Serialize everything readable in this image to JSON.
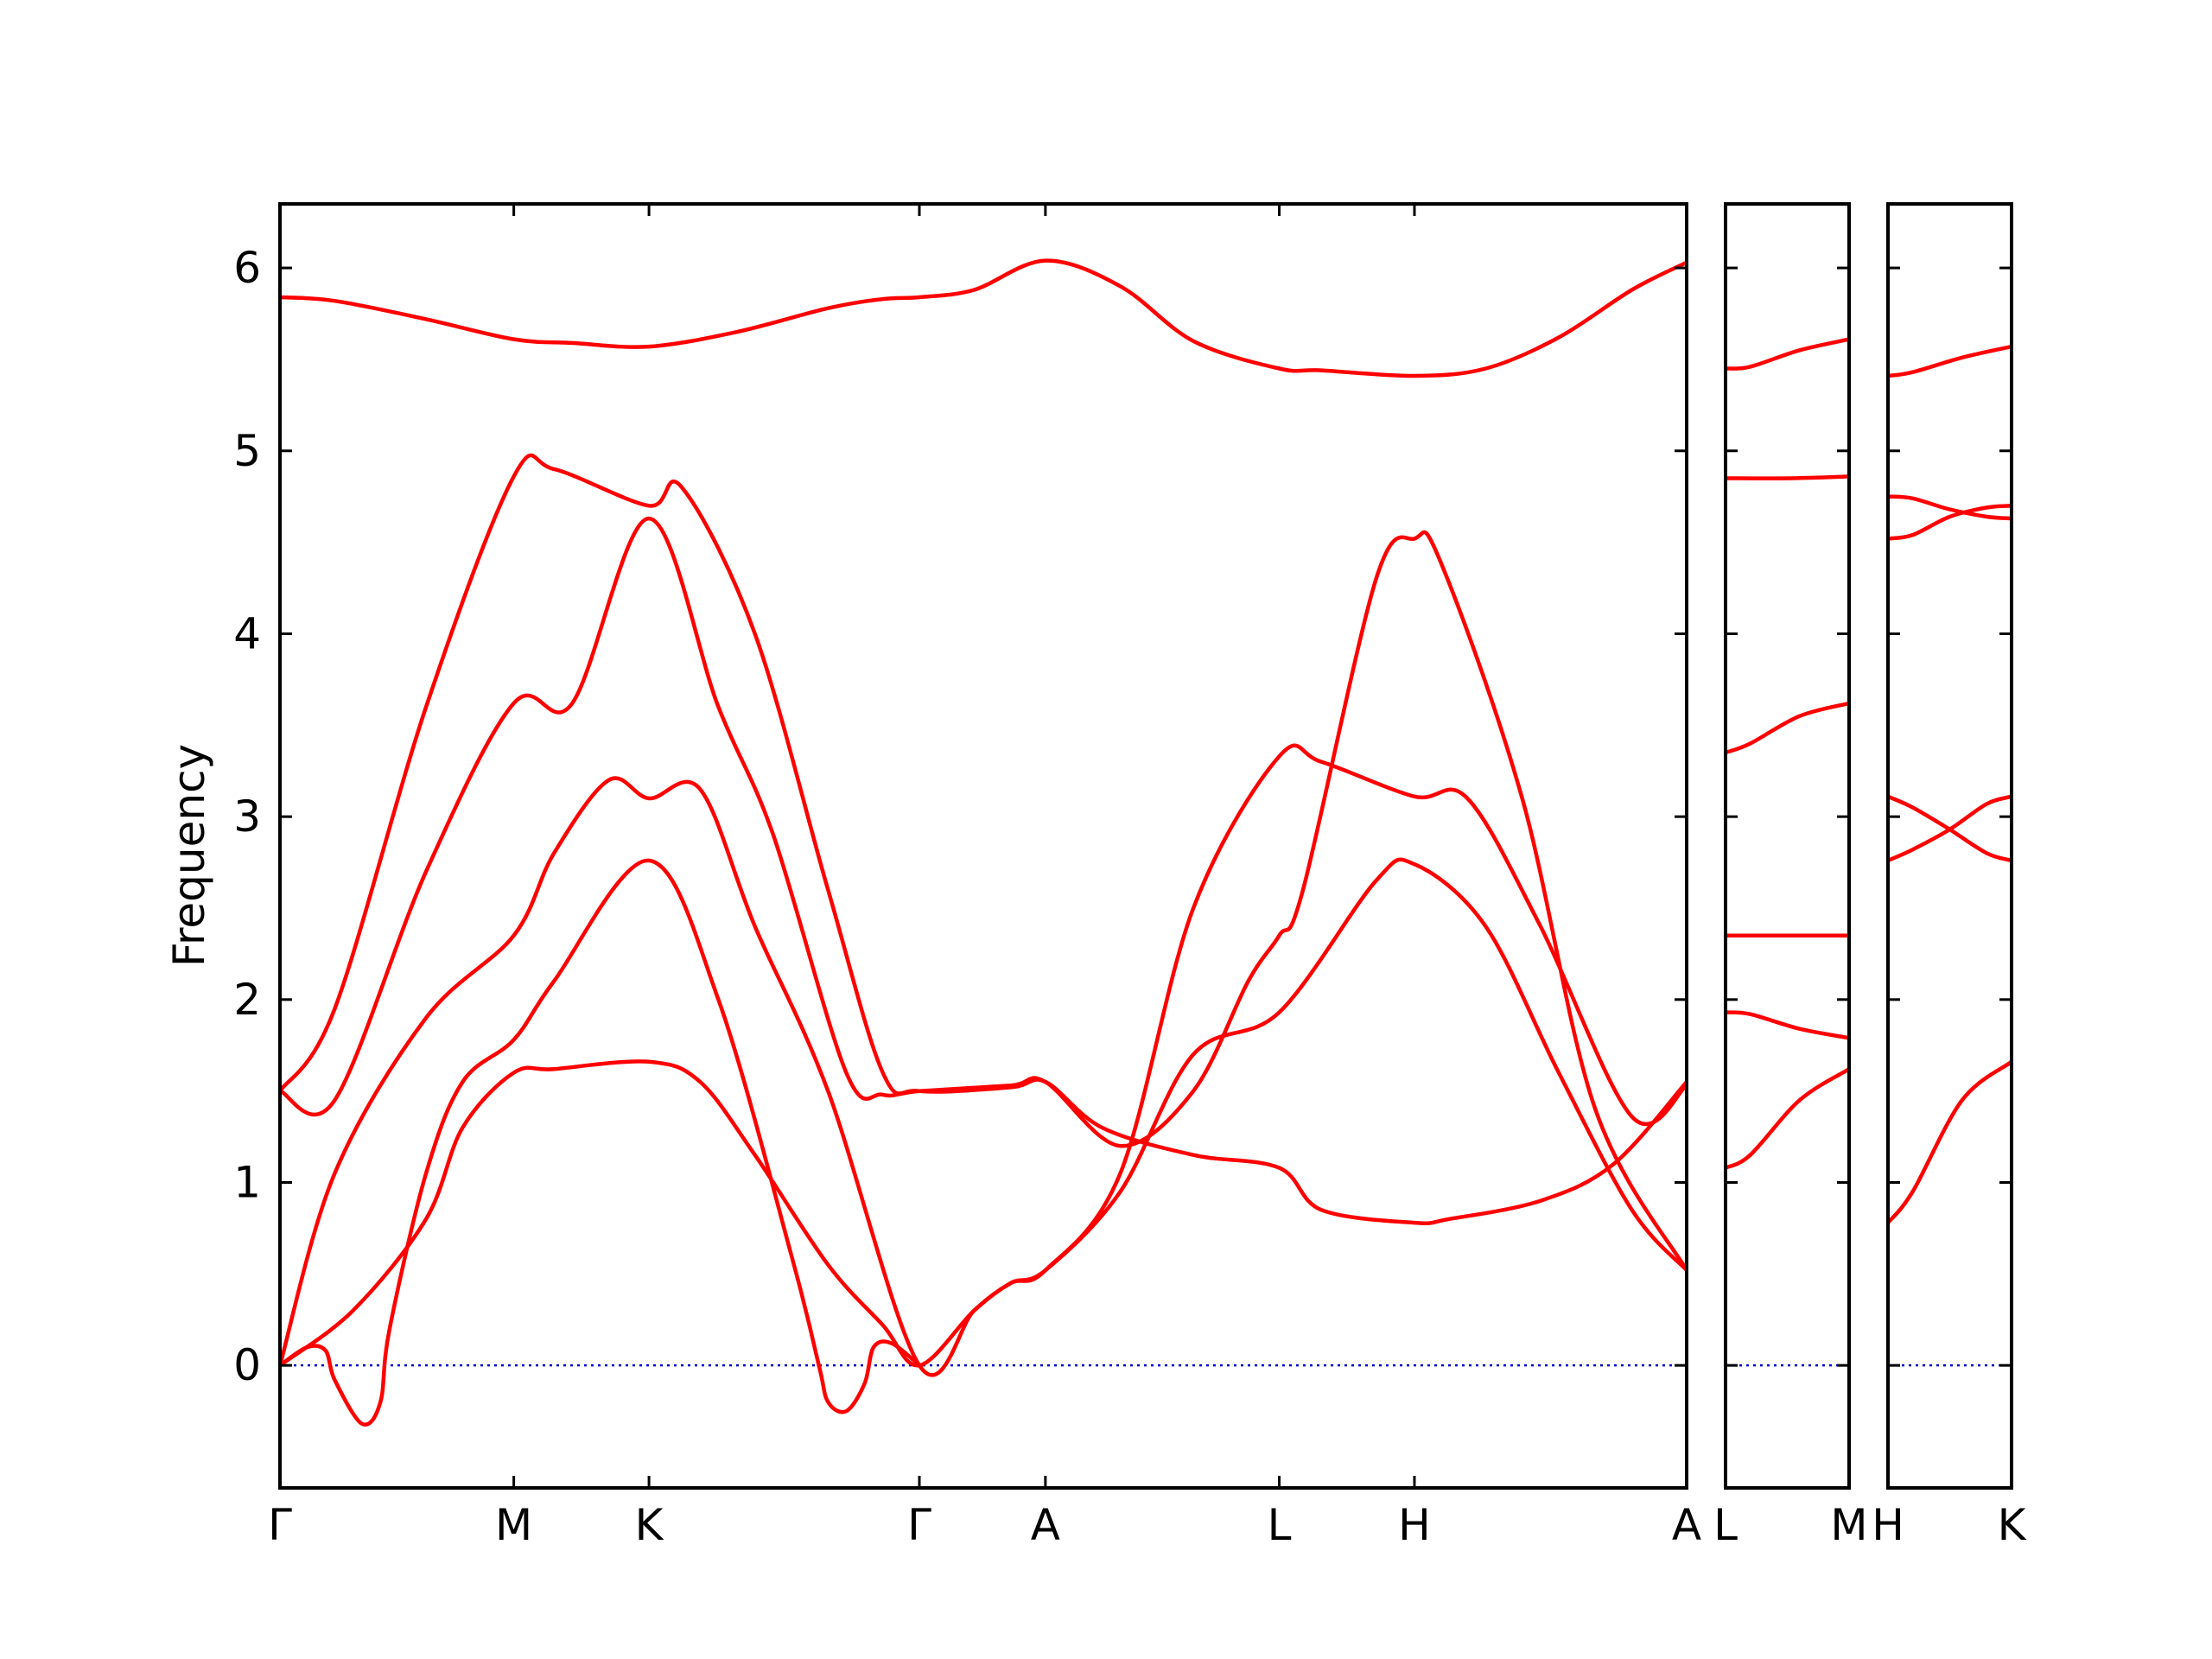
{
  "chart_data": {
    "type": "line",
    "ylabel": "Frequency",
    "ylim": [
      -0.67,
      6.35
    ],
    "yticks": [
      0,
      1,
      2,
      3,
      4,
      5,
      6
    ],
    "band_color": "#ff0000",
    "zero_line_color": "#0000cd",
    "grid": false,
    "panels": [
      {
        "xrange": [
          0,
          7.7
        ],
        "ticks": [
          {
            "x": 0.0,
            "label": "Γ"
          },
          {
            "x": 1.28,
            "label": "M"
          },
          {
            "x": 2.02,
            "label": "K"
          },
          {
            "x": 3.5,
            "label": "Γ"
          },
          {
            "x": 4.19,
            "label": "A"
          },
          {
            "x": 5.47,
            "label": "L"
          },
          {
            "x": 6.21,
            "label": "H"
          },
          {
            "x": 7.7,
            "label": "A"
          }
        ],
        "series": [
          {
            "x": [
              0,
              0.3,
              0.8,
              1.28,
              1.6,
              2.02,
              2.5,
              3.0,
              3.3,
              3.5,
              3.8,
              4.19,
              4.6,
              5.0,
              5.47,
              5.7,
              6.21,
              6.6,
              7.0,
              7.4,
              7.7
            ],
            "y": [
              5.84,
              5.82,
              5.72,
              5.61,
              5.59,
              5.57,
              5.65,
              5.78,
              5.83,
              5.84,
              5.88,
              6.04,
              5.9,
              5.6,
              5.45,
              5.44,
              5.41,
              5.45,
              5.62,
              5.88,
              6.03
            ]
          },
          {
            "x": [
              0,
              0.3,
              0.8,
              1.28,
              1.5,
              2.02,
              2.2,
              2.6,
              3.0,
              3.3,
              3.5,
              4.0,
              4.19,
              4.5,
              5.0,
              5.47,
              5.7,
              6.21,
              6.4,
              6.9,
              7.3,
              7.7
            ],
            "y": [
              1.5,
              1.95,
              3.6,
              4.86,
              4.9,
              4.7,
              4.8,
              4.0,
              2.6,
              1.6,
              1.5,
              1.52,
              1.55,
              1.3,
              1.15,
              1.08,
              0.85,
              0.78,
              0.8,
              0.9,
              1.1,
              1.55
            ]
          },
          {
            "x": [
              0,
              0.3,
              0.8,
              1.28,
              1.6,
              2.02,
              2.4,
              2.7,
              3.1,
              3.3,
              3.5,
              4.0,
              4.19,
              4.6,
              5.0,
              5.3,
              5.47,
              5.6,
              6.0,
              6.21,
              6.35,
              6.8,
              7.2,
              7.7
            ],
            "y": [
              1.5,
              1.45,
              2.7,
              3.62,
              3.62,
              4.63,
              3.6,
              2.9,
              1.6,
              1.48,
              1.5,
              1.53,
              1.55,
              1.2,
              1.5,
              2.1,
              2.35,
              2.6,
              4.3,
              4.52,
              4.4,
              3.1,
              1.4,
              0.52
            ]
          },
          {
            "x": [
              0,
              0.3,
              0.8,
              1.28,
              1.5,
              1.8,
              2.02,
              2.3,
              2.6,
              3.0,
              3.5,
              3.8,
              4.0,
              4.19,
              4.6,
              5.0,
              5.47,
              5.7,
              6.21,
              6.5,
              6.9,
              7.4,
              7.7
            ],
            "y": [
              0,
              1.05,
              1.9,
              2.35,
              2.8,
              3.2,
              3.1,
              3.15,
              2.4,
              1.5,
              0.0,
              0.3,
              0.45,
              0.52,
              1.05,
              2.5,
              3.33,
              3.3,
              3.11,
              3.1,
              2.4,
              1.36,
              1.53
            ]
          },
          {
            "x": [
              0,
              0.4,
              0.8,
              1.0,
              1.28,
              1.5,
              2.02,
              2.3,
              2.6,
              3.0,
              3.3,
              3.5,
              3.8,
              4.0,
              4.19,
              4.6,
              5.0,
              5.47,
              6.0,
              6.21,
              6.6,
              7.0,
              7.4,
              7.7
            ],
            "y": [
              0,
              0.3,
              0.8,
              1.3,
              1.6,
              1.62,
              1.66,
              1.55,
              1.15,
              0.55,
              0.22,
              0.0,
              0.3,
              0.45,
              0.52,
              0.95,
              1.7,
              1.93,
              2.65,
              2.74,
              2.4,
              1.6,
              0.85,
              0.52
            ]
          },
          {
            "x": [
              0,
              0.15,
              0.25,
              0.3,
              0.45,
              0.55,
              0.6,
              0.8,
              1.0,
              1.28,
              1.5,
              2.02,
              2.4,
              2.8,
              2.95,
              3.0,
              3.1,
              3.2,
              3.25,
              3.35,
              3.5
            ],
            "y": [
              0,
              0.1,
              0.08,
              -0.08,
              -0.32,
              -0.2,
              0.2,
              1.05,
              1.55,
              1.78,
              2.1,
              2.76,
              2.0,
              0.6,
              0.0,
              -0.2,
              -0.25,
              -0.1,
              0.1,
              0.12,
              0.0
            ]
          }
        ]
      },
      {
        "xrange": [
          0,
          1
        ],
        "ticks": [
          {
            "x": 0,
            "label": "L"
          },
          {
            "x": 1,
            "label": "M"
          }
        ],
        "series": [
          {
            "x": [
              0,
              0.2,
              0.6,
              1
            ],
            "y": [
              5.45,
              5.46,
              5.55,
              5.61
            ]
          },
          {
            "x": [
              0,
              0.5,
              1
            ],
            "y": [
              4.85,
              4.85,
              4.86
            ]
          },
          {
            "x": [
              0,
              0.2,
              0.6,
              1
            ],
            "y": [
              3.35,
              3.4,
              3.55,
              3.62
            ]
          },
          {
            "x": [
              0,
              0.5,
              1
            ],
            "y": [
              2.35,
              2.35,
              2.35
            ]
          },
          {
            "x": [
              0,
              0.2,
              0.6,
              1
            ],
            "y": [
              1.93,
              1.92,
              1.84,
              1.79
            ]
          },
          {
            "x": [
              0,
              0.2,
              0.6,
              1
            ],
            "y": [
              1.08,
              1.15,
              1.45,
              1.62
            ]
          }
        ]
      },
      {
        "xrange": [
          0,
          1
        ],
        "ticks": [
          {
            "x": 0,
            "label": "H"
          },
          {
            "x": 1,
            "label": "K"
          }
        ],
        "series": [
          {
            "x": [
              0,
              0.2,
              0.6,
              1
            ],
            "y": [
              5.41,
              5.43,
              5.51,
              5.57
            ]
          },
          {
            "x": [
              0,
              0.2,
              0.5,
              0.8,
              1
            ],
            "y": [
              4.75,
              4.74,
              4.68,
              4.64,
              4.63
            ]
          },
          {
            "x": [
              0,
              0.2,
              0.5,
              0.8,
              1
            ],
            "y": [
              4.52,
              4.54,
              4.64,
              4.69,
              4.7
            ]
          },
          {
            "x": [
              0,
              0.2,
              0.5,
              0.8,
              1
            ],
            "y": [
              3.11,
              3.05,
              2.93,
              2.8,
              2.76
            ]
          },
          {
            "x": [
              0,
              0.2,
              0.5,
              0.8,
              1
            ],
            "y": [
              2.76,
              2.82,
              2.93,
              3.07,
              3.11
            ]
          },
          {
            "x": [
              0,
              0.2,
              0.6,
              1
            ],
            "y": [
              0.78,
              0.95,
              1.45,
              1.66
            ]
          }
        ]
      }
    ]
  }
}
